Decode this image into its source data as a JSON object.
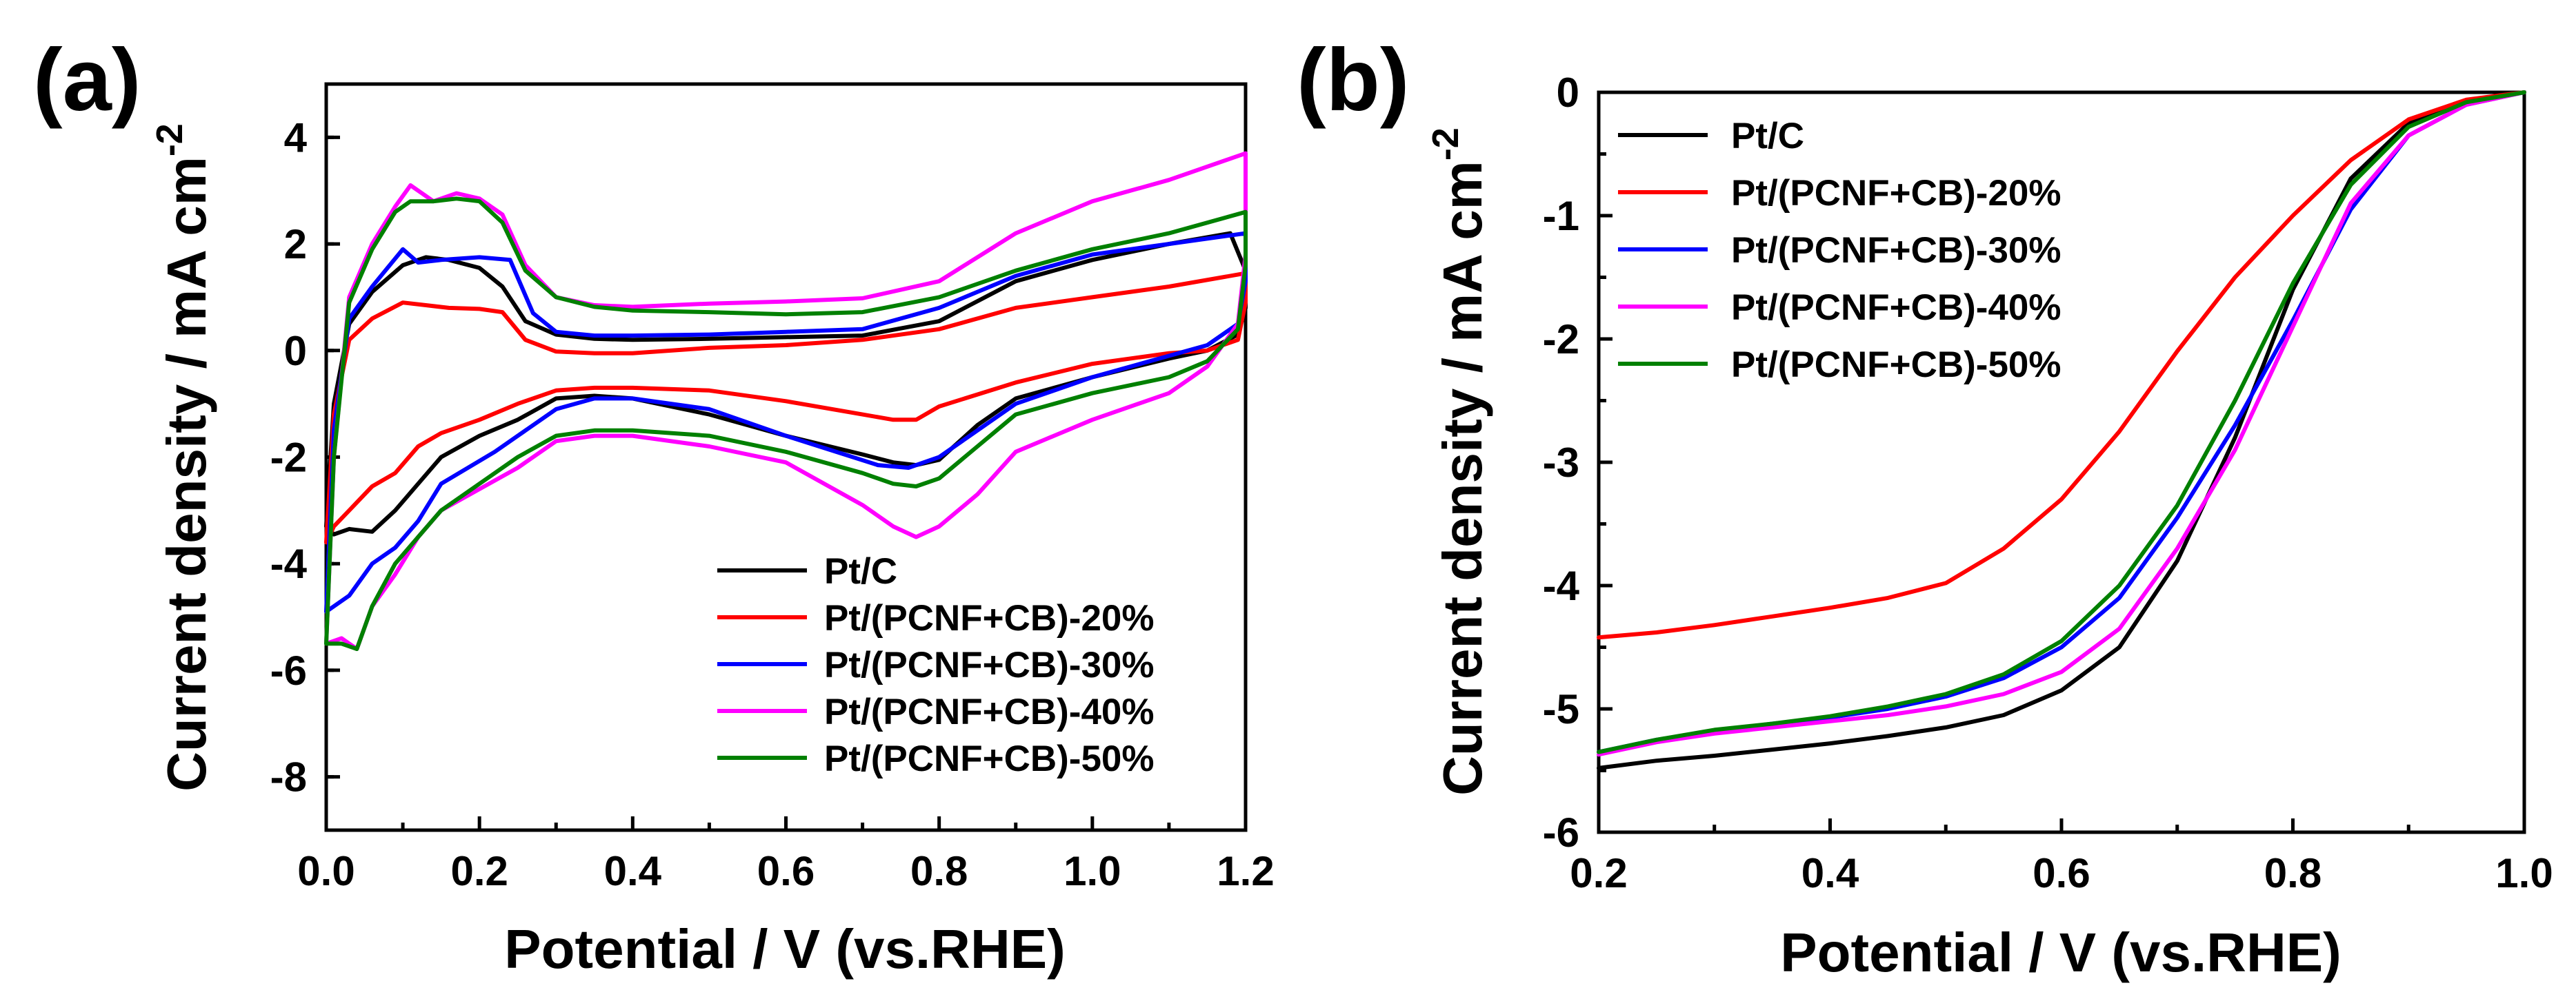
{
  "chart_data": [
    {
      "type": "line",
      "panel_label": "(a)",
      "xlabel": "Potential / V (vs.RHE)",
      "ylabel": "Current density / mA cm",
      "ylabel_sup": "-2",
      "xlim": [
        0.0,
        1.2
      ],
      "ylim": [
        -9,
        5
      ],
      "xticks": [
        "0.0",
        "0.2",
        "0.4",
        "0.6",
        "0.8",
        "1.0",
        "1.2"
      ],
      "xtick_values": [
        0.0,
        0.2,
        0.4,
        0.6,
        0.8,
        1.0,
        1.2
      ],
      "yticks": [
        "4",
        "2",
        "0",
        "-2",
        "-4",
        "-6",
        "-8"
      ],
      "ytick_values": [
        4,
        2,
        0,
        -2,
        -4,
        -6,
        -8
      ],
      "grid": false,
      "legend_position": "bottom-right",
      "series": [
        {
          "name": "Pt/C",
          "color": "#000000",
          "x": [
            0.0,
            0.01,
            0.03,
            0.06,
            0.1,
            0.13,
            0.16,
            0.2,
            0.23,
            0.26,
            0.3,
            0.35,
            0.4,
            0.5,
            0.6,
            0.7,
            0.8,
            0.9,
            1.0,
            1.1,
            1.18,
            1.2,
            1.2,
            1.19,
            1.15,
            1.1,
            1.0,
            0.9,
            0.85,
            0.8,
            0.77,
            0.74,
            0.7,
            0.6,
            0.5,
            0.4,
            0.35,
            0.3,
            0.25,
            0.2,
            0.15,
            0.12,
            0.09,
            0.06,
            0.03,
            0.01,
            0.0
          ],
          "y": [
            -3.3,
            -1.0,
            0.5,
            1.1,
            1.6,
            1.75,
            1.7,
            1.55,
            1.2,
            0.55,
            0.3,
            0.22,
            0.2,
            0.22,
            0.25,
            0.28,
            0.55,
            1.3,
            1.7,
            2.0,
            2.2,
            1.5,
            0.8,
            0.3,
            0.0,
            -0.15,
            -0.5,
            -0.9,
            -1.4,
            -2.05,
            -2.15,
            -2.1,
            -1.95,
            -1.6,
            -1.2,
            -0.9,
            -0.85,
            -0.9,
            -1.3,
            -1.6,
            -2.0,
            -2.5,
            -3.0,
            -3.4,
            -3.35,
            -3.45,
            -3.3
          ]
        },
        {
          "name": "Pt/(PCNF+CB)-20%",
          "color": "#ff0000",
          "x": [
            0.0,
            0.01,
            0.03,
            0.06,
            0.1,
            0.13,
            0.16,
            0.2,
            0.23,
            0.26,
            0.3,
            0.35,
            0.4,
            0.5,
            0.6,
            0.7,
            0.8,
            0.9,
            1.0,
            1.1,
            1.2,
            1.2,
            1.19,
            1.15,
            1.1,
            1.0,
            0.9,
            0.8,
            0.77,
            0.74,
            0.7,
            0.6,
            0.5,
            0.4,
            0.35,
            0.3,
            0.25,
            0.2,
            0.15,
            0.12,
            0.09,
            0.06,
            0.03,
            0.01,
            0.0
          ],
          "y": [
            -3.6,
            -1.2,
            0.2,
            0.6,
            0.9,
            0.85,
            0.8,
            0.78,
            0.72,
            0.2,
            -0.02,
            -0.05,
            -0.05,
            0.05,
            0.1,
            0.2,
            0.4,
            0.8,
            1.0,
            1.2,
            1.45,
            0.9,
            0.2,
            0.0,
            -0.05,
            -0.25,
            -0.6,
            -1.05,
            -1.3,
            -1.3,
            -1.2,
            -0.95,
            -0.75,
            -0.7,
            -0.7,
            -0.75,
            -1.0,
            -1.3,
            -1.55,
            -1.8,
            -2.3,
            -2.55,
            -3.0,
            -3.3,
            -3.6
          ]
        },
        {
          "name": "Pt/(PCNF+CB)-30%",
          "color": "#0000ff",
          "x": [
            0.0,
            0.01,
            0.03,
            0.06,
            0.1,
            0.12,
            0.15,
            0.2,
            0.24,
            0.27,
            0.3,
            0.35,
            0.4,
            0.5,
            0.6,
            0.7,
            0.8,
            0.9,
            1.0,
            1.1,
            1.2,
            1.2,
            1.19,
            1.15,
            1.1,
            1.0,
            0.9,
            0.85,
            0.8,
            0.76,
            0.72,
            0.6,
            0.5,
            0.4,
            0.35,
            0.3,
            0.22,
            0.15,
            0.12,
            0.09,
            0.06,
            0.03,
            0.01,
            0.0
          ],
          "y": [
            -4.9,
            -1.5,
            0.6,
            1.2,
            1.9,
            1.65,
            1.7,
            1.75,
            1.7,
            0.7,
            0.35,
            0.28,
            0.28,
            0.3,
            0.35,
            0.4,
            0.8,
            1.4,
            1.8,
            2.0,
            2.2,
            1.3,
            0.5,
            0.1,
            -0.1,
            -0.5,
            -1.0,
            -1.5,
            -2.0,
            -2.2,
            -2.15,
            -1.6,
            -1.1,
            -0.9,
            -0.9,
            -1.1,
            -1.9,
            -2.5,
            -3.2,
            -3.7,
            -4.0,
            -4.6,
            -4.8,
            -4.9
          ]
        },
        {
          "name": "Pt/(PCNF+CB)-40%",
          "color": "#ff00ff",
          "x": [
            0.0,
            0.01,
            0.03,
            0.06,
            0.09,
            0.11,
            0.14,
            0.17,
            0.2,
            0.23,
            0.26,
            0.3,
            0.35,
            0.4,
            0.5,
            0.6,
            0.7,
            0.8,
            0.9,
            1.0,
            1.1,
            1.2,
            1.2,
            1.19,
            1.15,
            1.1,
            1.0,
            0.9,
            0.85,
            0.8,
            0.77,
            0.74,
            0.7,
            0.6,
            0.5,
            0.4,
            0.35,
            0.3,
            0.25,
            0.2,
            0.15,
            0.12,
            0.09,
            0.06,
            0.04,
            0.02,
            0.0
          ],
          "y": [
            -5.5,
            -2.0,
            1.0,
            2.0,
            2.7,
            3.1,
            2.8,
            2.95,
            2.85,
            2.55,
            1.6,
            1.0,
            0.85,
            0.82,
            0.88,
            0.92,
            0.98,
            1.3,
            2.2,
            2.8,
            3.2,
            3.7,
            1.8,
            0.5,
            -0.3,
            -0.8,
            -1.3,
            -1.9,
            -2.7,
            -3.3,
            -3.5,
            -3.3,
            -2.9,
            -2.1,
            -1.8,
            -1.6,
            -1.6,
            -1.7,
            -2.2,
            -2.6,
            -3.0,
            -3.5,
            -4.2,
            -4.8,
            -5.6,
            -5.4,
            -5.5
          ]
        },
        {
          "name": "Pt/(PCNF+CB)-50%",
          "color": "#008000",
          "x": [
            0.0,
            0.01,
            0.03,
            0.06,
            0.09,
            0.11,
            0.14,
            0.17,
            0.2,
            0.23,
            0.26,
            0.3,
            0.35,
            0.4,
            0.5,
            0.6,
            0.7,
            0.8,
            0.9,
            1.0,
            1.1,
            1.2,
            1.2,
            1.19,
            1.15,
            1.1,
            1.0,
            0.9,
            0.85,
            0.8,
            0.77,
            0.74,
            0.7,
            0.6,
            0.5,
            0.4,
            0.35,
            0.3,
            0.25,
            0.2,
            0.15,
            0.12,
            0.09,
            0.06,
            0.04,
            0.02,
            0.0
          ],
          "y": [
            -5.5,
            -2.0,
            0.9,
            1.9,
            2.6,
            2.8,
            2.8,
            2.85,
            2.8,
            2.4,
            1.5,
            1.0,
            0.82,
            0.75,
            0.72,
            0.68,
            0.72,
            1.0,
            1.5,
            1.9,
            2.2,
            2.6,
            1.6,
            0.4,
            -0.2,
            -0.5,
            -0.8,
            -1.2,
            -1.8,
            -2.4,
            -2.55,
            -2.5,
            -2.3,
            -1.9,
            -1.6,
            -1.5,
            -1.5,
            -1.6,
            -2.0,
            -2.5,
            -3.0,
            -3.5,
            -4.0,
            -4.8,
            -5.6,
            -5.5,
            -5.5
          ]
        }
      ]
    },
    {
      "type": "line",
      "panel_label": "(b)",
      "xlabel": "Potential / V (vs.RHE)",
      "ylabel": "Current density / mA cm",
      "ylabel_sup": "-2",
      "xlim": [
        0.2,
        1.0
      ],
      "ylim": [
        -6,
        0
      ],
      "xticks": [
        "0.2",
        "0.4",
        "0.6",
        "0.8",
        "1.0"
      ],
      "xtick_values": [
        0.2,
        0.4,
        0.6,
        0.8,
        1.0
      ],
      "yticks": [
        "0",
        "-1",
        "-2",
        "-3",
        "-4",
        "-5",
        "-6"
      ],
      "ytick_values": [
        0,
        -1,
        -2,
        -3,
        -4,
        -5,
        -6
      ],
      "grid": false,
      "legend_position": "top-left",
      "series": [
        {
          "name": "Pt/C",
          "color": "#000000",
          "x": [
            0.2,
            0.25,
            0.3,
            0.35,
            0.4,
            0.45,
            0.5,
            0.55,
            0.6,
            0.65,
            0.7,
            0.75,
            0.8,
            0.85,
            0.9,
            0.95,
            1.0
          ],
          "y": [
            -5.48,
            -5.42,
            -5.38,
            -5.33,
            -5.28,
            -5.22,
            -5.15,
            -5.05,
            -4.85,
            -4.5,
            -3.8,
            -2.8,
            -1.6,
            -0.7,
            -0.25,
            -0.08,
            0.0
          ]
        },
        {
          "name": "Pt/(PCNF+CB)-20%",
          "color": "#ff0000",
          "x": [
            0.2,
            0.25,
            0.3,
            0.35,
            0.4,
            0.45,
            0.5,
            0.55,
            0.6,
            0.65,
            0.7,
            0.75,
            0.8,
            0.85,
            0.9,
            0.95,
            1.0
          ],
          "y": [
            -4.42,
            -4.38,
            -4.32,
            -4.25,
            -4.18,
            -4.1,
            -3.98,
            -3.7,
            -3.3,
            -2.75,
            -2.1,
            -1.5,
            -1.0,
            -0.55,
            -0.22,
            -0.06,
            0.0
          ]
        },
        {
          "name": "Pt/(PCNF+CB)-30%",
          "color": "#0000ff",
          "x": [
            0.2,
            0.25,
            0.3,
            0.35,
            0.4,
            0.45,
            0.5,
            0.55,
            0.6,
            0.65,
            0.7,
            0.75,
            0.8,
            0.85,
            0.9,
            0.95,
            1.0
          ],
          "y": [
            -5.35,
            -5.25,
            -5.18,
            -5.12,
            -5.07,
            -5.0,
            -4.9,
            -4.75,
            -4.5,
            -4.1,
            -3.45,
            -2.7,
            -1.85,
            -0.95,
            -0.35,
            -0.1,
            0.0
          ]
        },
        {
          "name": "Pt/(PCNF+CB)-40%",
          "color": "#ff00ff",
          "x": [
            0.2,
            0.25,
            0.3,
            0.35,
            0.4,
            0.45,
            0.5,
            0.55,
            0.6,
            0.65,
            0.7,
            0.75,
            0.8,
            0.85,
            0.9,
            0.95,
            1.0
          ],
          "y": [
            -5.37,
            -5.27,
            -5.2,
            -5.15,
            -5.1,
            -5.05,
            -4.98,
            -4.88,
            -4.7,
            -4.35,
            -3.7,
            -2.9,
            -1.9,
            -0.9,
            -0.35,
            -0.1,
            0.0
          ]
        },
        {
          "name": "Pt/(PCNF+CB)-50%",
          "color": "#008000",
          "x": [
            0.2,
            0.25,
            0.3,
            0.35,
            0.4,
            0.45,
            0.5,
            0.55,
            0.6,
            0.65,
            0.7,
            0.75,
            0.8,
            0.85,
            0.9,
            0.95,
            1.0
          ],
          "y": [
            -5.35,
            -5.25,
            -5.17,
            -5.12,
            -5.06,
            -4.98,
            -4.88,
            -4.72,
            -4.45,
            -4.0,
            -3.35,
            -2.5,
            -1.55,
            -0.75,
            -0.28,
            -0.08,
            0.0
          ]
        }
      ]
    }
  ]
}
